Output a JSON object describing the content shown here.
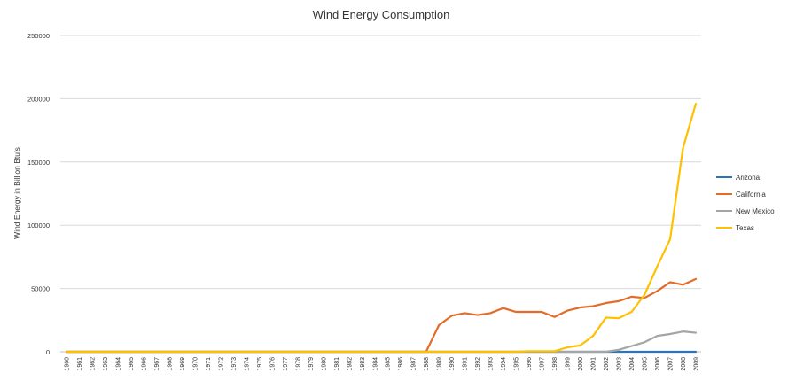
{
  "chart_data": {
    "type": "line",
    "title": "Wind Energy Consumption",
    "xlabel": "",
    "ylabel": "Wind Energy in Billion Btu's",
    "ylim": [
      0,
      250000
    ],
    "yticks": [
      "0",
      "50000",
      "100000",
      "150000",
      "200000",
      "250000"
    ],
    "grid": true,
    "legend_position": "right",
    "categories": [
      "1960",
      "1961",
      "1962",
      "1963",
      "1964",
      "1965",
      "1966",
      "1967",
      "1968",
      "1969",
      "1970",
      "1971",
      "1972",
      "1973",
      "1974",
      "1975",
      "1976",
      "1977",
      "1978",
      "1979",
      "1980",
      "1981",
      "1982",
      "1983",
      "1984",
      "1985",
      "1986",
      "1987",
      "1988",
      "1989",
      "1990",
      "1991",
      "1992",
      "1993",
      "1994",
      "1995",
      "1996",
      "1997",
      "1998",
      "1999",
      "2000",
      "2001",
      "2002",
      "2003",
      "2004",
      "2005",
      "2006",
      "2007",
      "2008",
      "2009"
    ],
    "series": [
      {
        "name": "Arizona",
        "color": "#2e75b6",
        "values": [
          0,
          0,
          0,
          0,
          0,
          0,
          0,
          0,
          0,
          0,
          0,
          0,
          0,
          0,
          0,
          0,
          0,
          0,
          0,
          0,
          0,
          0,
          0,
          0,
          0,
          0,
          0,
          0,
          0,
          0,
          0,
          0,
          0,
          0,
          0,
          0,
          0,
          0,
          0,
          0,
          0,
          0,
          0,
          0,
          0,
          0,
          0,
          0,
          0,
          0
        ]
      },
      {
        "name": "California",
        "color": "#e36c29",
        "values": [
          0,
          0,
          0,
          0,
          0,
          0,
          0,
          0,
          0,
          0,
          0,
          0,
          0,
          0,
          0,
          0,
          0,
          0,
          0,
          0,
          0,
          0,
          0,
          0,
          0,
          0,
          0,
          0,
          0,
          21000,
          28500,
          30500,
          29000,
          30500,
          34500,
          31500,
          31500,
          31500,
          27500,
          32500,
          35000,
          36000,
          38500,
          40000,
          43500,
          42500,
          48000,
          55000,
          53000,
          57500
        ]
      },
      {
        "name": "New Mexico",
        "color": "#a5a5a5",
        "values": [
          0,
          0,
          0,
          0,
          0,
          0,
          0,
          0,
          0,
          0,
          0,
          0,
          0,
          0,
          0,
          0,
          0,
          0,
          0,
          0,
          0,
          0,
          0,
          0,
          0,
          0,
          0,
          0,
          0,
          0,
          0,
          0,
          0,
          0,
          0,
          0,
          0,
          0,
          0,
          0,
          0,
          0,
          0,
          1500,
          4500,
          7500,
          12500,
          14000,
          16000,
          15000
        ]
      },
      {
        "name": "Texas",
        "color": "#ffc000",
        "values": [
          0,
          0,
          0,
          0,
          0,
          0,
          0,
          0,
          0,
          0,
          0,
          0,
          0,
          0,
          0,
          0,
          0,
          0,
          0,
          0,
          0,
          0,
          0,
          0,
          0,
          0,
          0,
          0,
          0,
          0,
          0,
          0,
          0,
          0,
          0,
          0,
          500,
          500,
          500,
          3500,
          5000,
          12500,
          27000,
          26500,
          31500,
          45000,
          67500,
          89000,
          161000,
          196000
        ]
      }
    ]
  }
}
